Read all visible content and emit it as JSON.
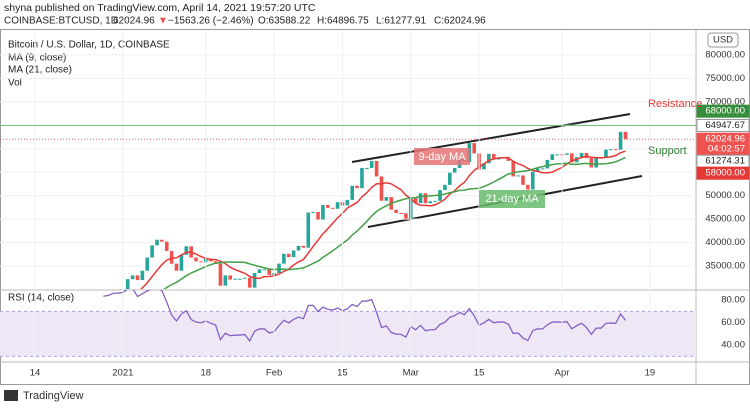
{
  "header": {
    "publisher": "shyna published on TradingView.com, April 14, 2021 19:57:20 UTC",
    "symbol": "COINBASE:BTCUSD, 1D",
    "last": "62024.96",
    "arrow": "▼",
    "change": "−1563.26 (−2.46%)",
    "open": "O:63588.22",
    "high": "H:64896.75",
    "low": "L:61277.91",
    "close": "C:62024.96"
  },
  "chart_data": {
    "type": "candlestick",
    "title": "Bitcoin / U.S. Dollar, 1D, COINBASE",
    "indicator_labels": [
      "MA (9, close)",
      "MA (21, close)",
      "Vol"
    ],
    "ma_periods": [
      9,
      21
    ],
    "ma_colors": [
      "#e53935",
      "#43a047"
    ],
    "up_color": "#26a69a",
    "down_color": "#ef5350",
    "currency": "USD",
    "closes": [
      19300,
      19400,
      21300,
      22800,
      23100,
      23800,
      23500,
      22700,
      23800,
      23200,
      23700,
      24700,
      26500,
      26300,
      27000,
      27400,
      28900,
      29000,
      29400,
      32200,
      33000,
      32000,
      34000,
      36800,
      39400,
      40600,
      40200,
      38200,
      35500,
      34000,
      37400,
      39200,
      36800,
      36000,
      35800,
      36600,
      36000,
      35500,
      30800,
      33000,
      32100,
      32300,
      32300,
      32500,
      30400,
      33500,
      34300,
      34300,
      33100,
      33500,
      35500,
      37600,
      36900,
      38300,
      39300,
      38900,
      46400,
      46500,
      44900,
      48000,
      47400,
      47200,
      48600,
      47900,
      49100,
      52100,
      51600,
      55900,
      55900,
      57400,
      54100,
      48900,
      49700,
      47000,
      46300,
      46200,
      45100,
      49600,
      48400,
      50500,
      48400,
      48800,
      48900,
      51200,
      52300,
      54900,
      55900,
      57800,
      57200,
      61200,
      59000,
      55600,
      56900,
      58900,
      57700,
      58100,
      58100,
      57400,
      54100,
      54300,
      52300,
      51300,
      55100,
      55800,
      55800,
      57600,
      58800,
      58800,
      58700,
      59000,
      57100,
      58200,
      59100,
      58000,
      56000,
      58100,
      58100,
      59800,
      59900,
      59800,
      63588.22,
      62024.96
    ],
    "ylim": [
      30100,
      85300
    ],
    "yticks": [
      {
        "value": 35000,
        "label": "35000.00"
      },
      {
        "value": 40000,
        "label": "40000.00"
      },
      {
        "value": 45000,
        "label": "45000.00"
      },
      {
        "value": 50000,
        "label": "50000.00"
      },
      {
        "value": 55000,
        "label": "55000.00"
      },
      {
        "value": 60000,
        "label": "60000.00"
      },
      {
        "value": 65000,
        "label": "65000.00"
      },
      {
        "value": 70000,
        "label": "70000.00"
      },
      {
        "value": 75000,
        "label": "75000.00"
      },
      {
        "value": 80000,
        "label": "80000.00"
      }
    ],
    "xticks": [
      {
        "value": 0,
        "label": "14"
      },
      {
        "value": 18,
        "label": "2021"
      },
      {
        "value": 35,
        "label": "18"
      },
      {
        "value": 49,
        "label": "Feb"
      },
      {
        "value": 63,
        "label": "15"
      },
      {
        "value": 77,
        "label": "Mar"
      },
      {
        "value": 91,
        "label": "15"
      },
      {
        "value": 108,
        "label": "Apr"
      },
      {
        "value": 126,
        "label": "19"
      }
    ],
    "price_labels": [
      {
        "value": 68000,
        "label": "68000.00",
        "color": "#388e3c"
      },
      {
        "value": 64947.67,
        "label": "64947.67",
        "color": "#ffffff"
      },
      {
        "value": 62024.96,
        "label": "62024.96",
        "color": "#ef5350",
        "countdown": "04:02:57"
      },
      {
        "value": 61274.31,
        "label": "61274.31",
        "color": "#ffffff"
      },
      {
        "value": 58000,
        "label": "58000.00",
        "color": "#e53935"
      }
    ],
    "annotations": {
      "resistance": "Resistance",
      "support": "Support",
      "ma9": "9-day MA",
      "ma21": "21-day MA"
    },
    "rsi": {
      "label": "RSI (14, close)",
      "period": 14,
      "color": "#7e57c2",
      "ylim": [
        25,
        89
      ],
      "band": [
        30,
        70
      ],
      "yticks": [
        {
          "value": 40,
          "label": "40.00"
        },
        {
          "value": 60,
          "label": "60.00"
        },
        {
          "value": 80,
          "label": "80.00"
        }
      ]
    },
    "footer": "TradingView"
  }
}
